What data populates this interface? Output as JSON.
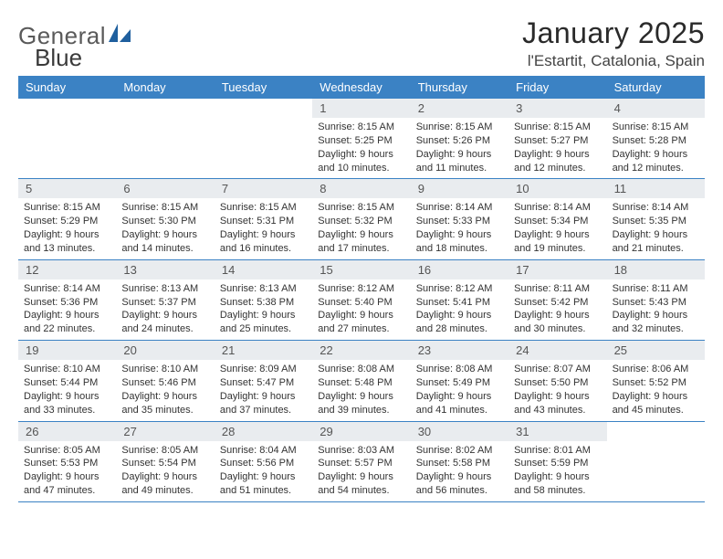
{
  "logo": {
    "word1": "General",
    "word2": "Blue",
    "shape_color": "#1f5f9e"
  },
  "header": {
    "title": "January 2025",
    "location": "l'Estartit, Catalonia, Spain"
  },
  "colors": {
    "header_bg": "#3b82c4",
    "header_text": "#ffffff",
    "daynum_bg": "#e9ecef",
    "border": "#3b82c4",
    "body_text": "#333333"
  },
  "typography": {
    "title_fontsize": 32,
    "location_fontsize": 17,
    "dayheader_fontsize": 13,
    "daynum_fontsize": 13,
    "body_fontsize": 11
  },
  "day_names": [
    "Sunday",
    "Monday",
    "Tuesday",
    "Wednesday",
    "Thursday",
    "Friday",
    "Saturday"
  ],
  "weeks": [
    [
      {
        "n": "",
        "sr": "",
        "ss": "",
        "dl": ""
      },
      {
        "n": "",
        "sr": "",
        "ss": "",
        "dl": ""
      },
      {
        "n": "",
        "sr": "",
        "ss": "",
        "dl": ""
      },
      {
        "n": "1",
        "sr": "Sunrise: 8:15 AM",
        "ss": "Sunset: 5:25 PM",
        "dl": "Daylight: 9 hours and 10 minutes."
      },
      {
        "n": "2",
        "sr": "Sunrise: 8:15 AM",
        "ss": "Sunset: 5:26 PM",
        "dl": "Daylight: 9 hours and 11 minutes."
      },
      {
        "n": "3",
        "sr": "Sunrise: 8:15 AM",
        "ss": "Sunset: 5:27 PM",
        "dl": "Daylight: 9 hours and 12 minutes."
      },
      {
        "n": "4",
        "sr": "Sunrise: 8:15 AM",
        "ss": "Sunset: 5:28 PM",
        "dl": "Daylight: 9 hours and 12 minutes."
      }
    ],
    [
      {
        "n": "5",
        "sr": "Sunrise: 8:15 AM",
        "ss": "Sunset: 5:29 PM",
        "dl": "Daylight: 9 hours and 13 minutes."
      },
      {
        "n": "6",
        "sr": "Sunrise: 8:15 AM",
        "ss": "Sunset: 5:30 PM",
        "dl": "Daylight: 9 hours and 14 minutes."
      },
      {
        "n": "7",
        "sr": "Sunrise: 8:15 AM",
        "ss": "Sunset: 5:31 PM",
        "dl": "Daylight: 9 hours and 16 minutes."
      },
      {
        "n": "8",
        "sr": "Sunrise: 8:15 AM",
        "ss": "Sunset: 5:32 PM",
        "dl": "Daylight: 9 hours and 17 minutes."
      },
      {
        "n": "9",
        "sr": "Sunrise: 8:14 AM",
        "ss": "Sunset: 5:33 PM",
        "dl": "Daylight: 9 hours and 18 minutes."
      },
      {
        "n": "10",
        "sr": "Sunrise: 8:14 AM",
        "ss": "Sunset: 5:34 PM",
        "dl": "Daylight: 9 hours and 19 minutes."
      },
      {
        "n": "11",
        "sr": "Sunrise: 8:14 AM",
        "ss": "Sunset: 5:35 PM",
        "dl": "Daylight: 9 hours and 21 minutes."
      }
    ],
    [
      {
        "n": "12",
        "sr": "Sunrise: 8:14 AM",
        "ss": "Sunset: 5:36 PM",
        "dl": "Daylight: 9 hours and 22 minutes."
      },
      {
        "n": "13",
        "sr": "Sunrise: 8:13 AM",
        "ss": "Sunset: 5:37 PM",
        "dl": "Daylight: 9 hours and 24 minutes."
      },
      {
        "n": "14",
        "sr": "Sunrise: 8:13 AM",
        "ss": "Sunset: 5:38 PM",
        "dl": "Daylight: 9 hours and 25 minutes."
      },
      {
        "n": "15",
        "sr": "Sunrise: 8:12 AM",
        "ss": "Sunset: 5:40 PM",
        "dl": "Daylight: 9 hours and 27 minutes."
      },
      {
        "n": "16",
        "sr": "Sunrise: 8:12 AM",
        "ss": "Sunset: 5:41 PM",
        "dl": "Daylight: 9 hours and 28 minutes."
      },
      {
        "n": "17",
        "sr": "Sunrise: 8:11 AM",
        "ss": "Sunset: 5:42 PM",
        "dl": "Daylight: 9 hours and 30 minutes."
      },
      {
        "n": "18",
        "sr": "Sunrise: 8:11 AM",
        "ss": "Sunset: 5:43 PM",
        "dl": "Daylight: 9 hours and 32 minutes."
      }
    ],
    [
      {
        "n": "19",
        "sr": "Sunrise: 8:10 AM",
        "ss": "Sunset: 5:44 PM",
        "dl": "Daylight: 9 hours and 33 minutes."
      },
      {
        "n": "20",
        "sr": "Sunrise: 8:10 AM",
        "ss": "Sunset: 5:46 PM",
        "dl": "Daylight: 9 hours and 35 minutes."
      },
      {
        "n": "21",
        "sr": "Sunrise: 8:09 AM",
        "ss": "Sunset: 5:47 PM",
        "dl": "Daylight: 9 hours and 37 minutes."
      },
      {
        "n": "22",
        "sr": "Sunrise: 8:08 AM",
        "ss": "Sunset: 5:48 PM",
        "dl": "Daylight: 9 hours and 39 minutes."
      },
      {
        "n": "23",
        "sr": "Sunrise: 8:08 AM",
        "ss": "Sunset: 5:49 PM",
        "dl": "Daylight: 9 hours and 41 minutes."
      },
      {
        "n": "24",
        "sr": "Sunrise: 8:07 AM",
        "ss": "Sunset: 5:50 PM",
        "dl": "Daylight: 9 hours and 43 minutes."
      },
      {
        "n": "25",
        "sr": "Sunrise: 8:06 AM",
        "ss": "Sunset: 5:52 PM",
        "dl": "Daylight: 9 hours and 45 minutes."
      }
    ],
    [
      {
        "n": "26",
        "sr": "Sunrise: 8:05 AM",
        "ss": "Sunset: 5:53 PM",
        "dl": "Daylight: 9 hours and 47 minutes."
      },
      {
        "n": "27",
        "sr": "Sunrise: 8:05 AM",
        "ss": "Sunset: 5:54 PM",
        "dl": "Daylight: 9 hours and 49 minutes."
      },
      {
        "n": "28",
        "sr": "Sunrise: 8:04 AM",
        "ss": "Sunset: 5:56 PM",
        "dl": "Daylight: 9 hours and 51 minutes."
      },
      {
        "n": "29",
        "sr": "Sunrise: 8:03 AM",
        "ss": "Sunset: 5:57 PM",
        "dl": "Daylight: 9 hours and 54 minutes."
      },
      {
        "n": "30",
        "sr": "Sunrise: 8:02 AM",
        "ss": "Sunset: 5:58 PM",
        "dl": "Daylight: 9 hours and 56 minutes."
      },
      {
        "n": "31",
        "sr": "Sunrise: 8:01 AM",
        "ss": "Sunset: 5:59 PM",
        "dl": "Daylight: 9 hours and 58 minutes."
      },
      {
        "n": "",
        "sr": "",
        "ss": "",
        "dl": ""
      }
    ]
  ]
}
